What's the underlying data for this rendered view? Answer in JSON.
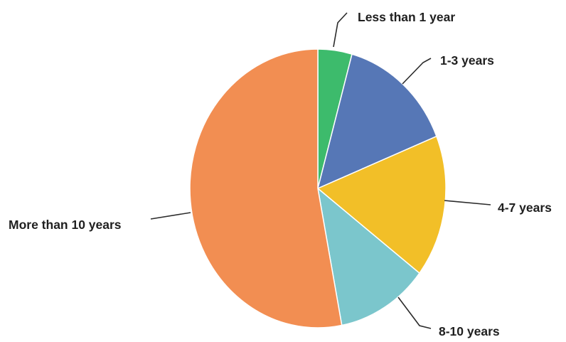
{
  "chart_data": {
    "type": "pie",
    "title": "",
    "slices": [
      {
        "label": "Less than 1 year",
        "value": 4.3,
        "color": "#3dbb6c"
      },
      {
        "label": "1-3 years",
        "value": 14.6,
        "color": "#5677b6"
      },
      {
        "label": "4-7 years",
        "value": 16.5,
        "color": "#f2bf28"
      },
      {
        "label": "8-10 years",
        "value": 11.6,
        "color": "#7bc6cc"
      },
      {
        "label": "More than 10 years",
        "value": 53.0,
        "color": "#f28e52"
      }
    ],
    "start_angle_deg": 0,
    "direction": "clockwise",
    "labels_position": "outside with leader lines",
    "legend": "none"
  }
}
